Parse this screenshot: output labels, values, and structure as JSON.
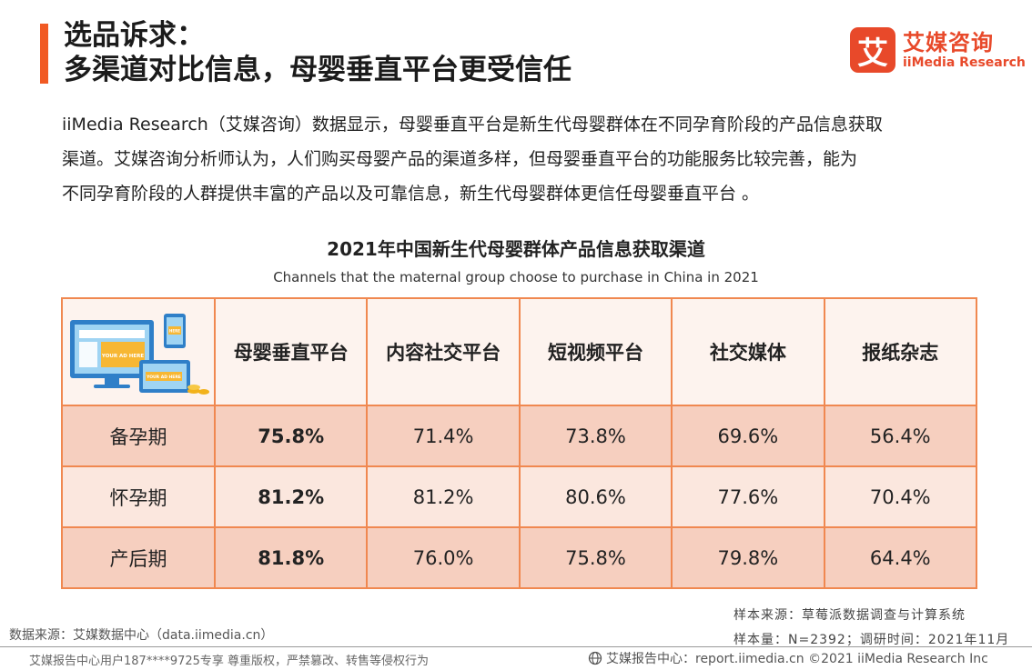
{
  "header": {
    "title_line1": "选品诉求：",
    "title_line2": "多渠道对比信息，母婴垂直平台更受信任"
  },
  "logo": {
    "mark": "艾",
    "name_cn": "艾媒咨询",
    "name_en": "iiMedia Research",
    "brand_color": "#e8492a"
  },
  "paragraph": {
    "line1": "iiMedia Research（艾媒咨询）数据显示，母婴垂直平台是新生代母婴群体在不同孕育阶段的产品信息获取",
    "line2": "渠道。艾媒咨询分析师认为，人们购买母婴产品的渠道多样，但母婴垂直平台的功能服务比较完善，能为",
    "line3": "不同孕育阶段的人群提供丰富的产品以及可靠信息，新生代母婴群体更信任母婴垂直平台 。"
  },
  "illustration": {
    "ad_text_large": "YOUR AD HERE",
    "ad_text_small": "YOUR AD HERE",
    "ad_text_phone": "HERE"
  },
  "chart_data": {
    "type": "table",
    "title": "2021年中国新生代母婴群体产品信息获取渠道",
    "subtitle": "Channels that the maternal group choose to purchase in China in 2021",
    "columns": [
      "母婴垂直平台",
      "内容社交平台",
      "短视频平台",
      "社交媒体",
      "报纸杂志"
    ],
    "rows": [
      {
        "label": "备孕期",
        "values": [
          "75.8%",
          "71.4%",
          "73.8%",
          "69.6%",
          "56.4%"
        ]
      },
      {
        "label": "怀孕期",
        "values": [
          "81.2%",
          "81.2%",
          "80.6%",
          "77.6%",
          "70.4%"
        ]
      },
      {
        "label": "产后期",
        "values": [
          "81.8%",
          "76.0%",
          "75.8%",
          "79.8%",
          "64.4%"
        ]
      }
    ]
  },
  "footer": {
    "sample_source": "样本来源：草莓派数据调查与计算系统",
    "sample_size": "样本量：N=2392；调研时间：2021年11月",
    "data_source": "数据来源：艾媒数据中心（data.iimedia.cn）",
    "copyright": "艾媒报告中心用户187****9725专享 尊重版权，严禁篡改、转售等侵权行为",
    "report_center": "艾媒报告中心：report.iimedia.cn  ©2021  iiMedia Research  Inc"
  },
  "colors": {
    "accent": "#f15a24",
    "table_border": "#f08850",
    "row_dark": "#f6cfbf",
    "row_light": "#fbe7de"
  }
}
